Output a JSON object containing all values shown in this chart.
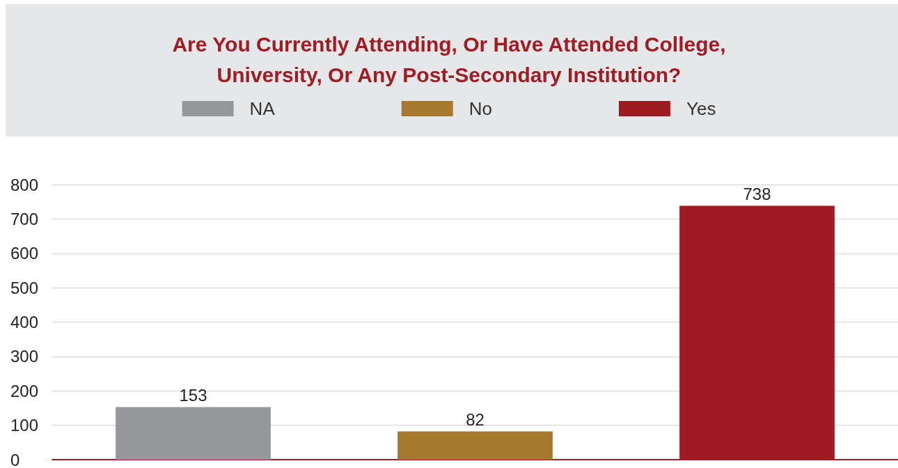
{
  "chart_data": {
    "type": "bar",
    "title": "Are You Currently Attending, Or Have Attended College,\nUniversity, Or Any Post-Secondary Institution?",
    "categories": [
      null,
      null,
      null
    ],
    "series": [
      {
        "name": "NA",
        "color": "#96979b",
        "values": [
          153,
          null,
          null
        ]
      },
      {
        "name": "No",
        "color": "#a5792e",
        "values": [
          null,
          82,
          null
        ]
      },
      {
        "name": "Yes",
        "color": "#9e1b23",
        "values": [
          null,
          null,
          738
        ]
      }
    ],
    "ylim": [
      0,
      800
    ],
    "yticks": [
      0,
      100,
      200,
      300,
      400,
      500,
      600,
      700,
      800
    ],
    "grid": "y",
    "legend": "top",
    "data_labels": true
  }
}
